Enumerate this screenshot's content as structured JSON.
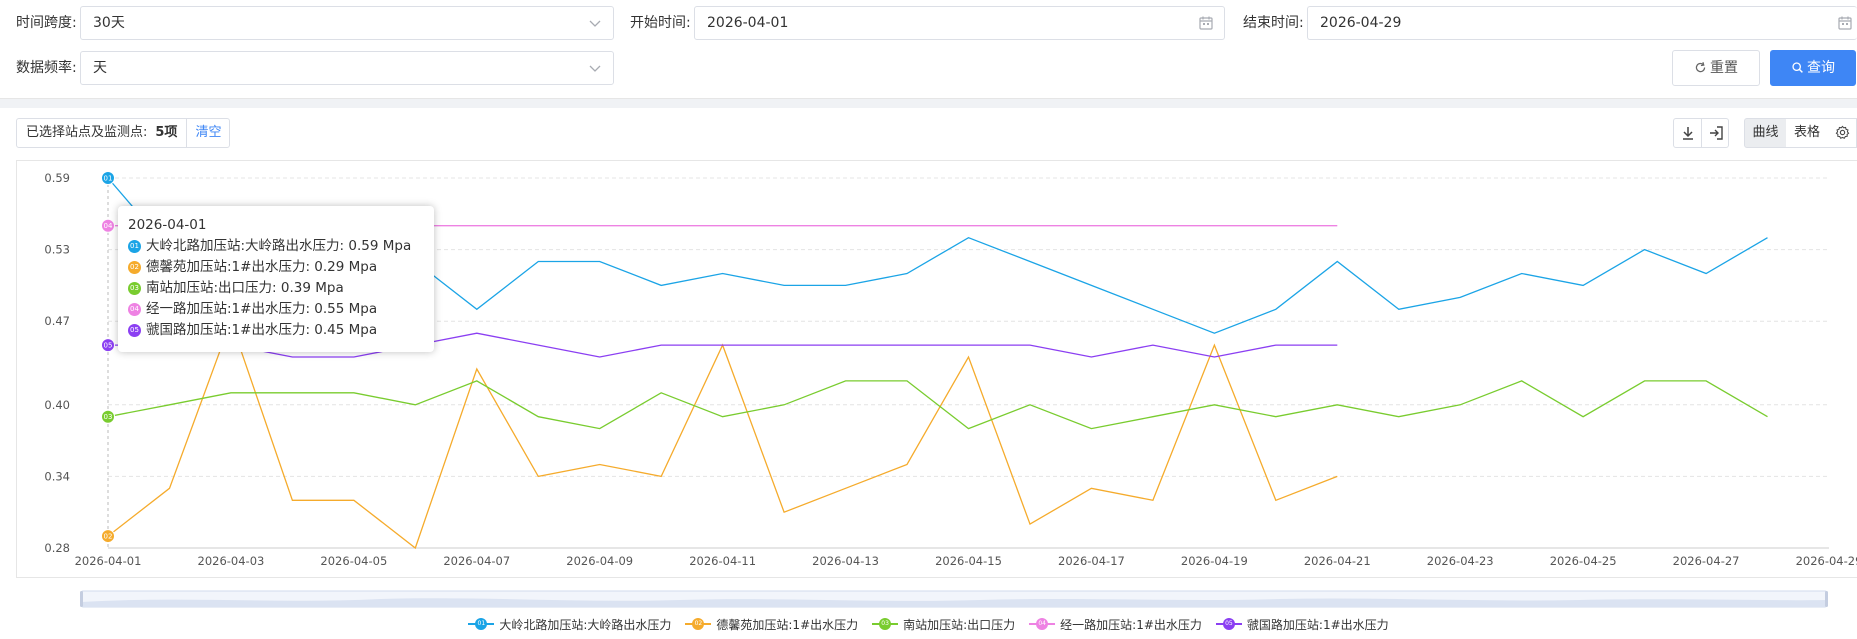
{
  "filters": {
    "span_label": "时间跨度:",
    "span_value": "30天",
    "start_label": "开始时间:",
    "start_value": "2026-04-01",
    "end_label": "结束时间:",
    "end_value": "2026-04-29",
    "freq_label": "数据频率:",
    "freq_value": "天",
    "reset_label": "重置",
    "query_label": "查询"
  },
  "toolbar": {
    "selected_label": "已选择站点及监测点:",
    "selected_count": "5项",
    "clear_label": "清空",
    "curve_label": "曲线",
    "table_label": "表格"
  },
  "tooltip": {
    "date": "2026-04-01",
    "rows": [
      {
        "num": "01",
        "text": "大岭北路加压站:大岭路出水压力:  0.59 Mpa",
        "color": "#1ba4e6"
      },
      {
        "num": "02",
        "text": "德馨苑加压站:1#出水压力:  0.29 Mpa",
        "color": "#f5ab2c"
      },
      {
        "num": "03",
        "text": "南站加压站:出口压力:  0.39 Mpa",
        "color": "#79cc2f"
      },
      {
        "num": "04",
        "text": "经一路加压站:1#出水压力:  0.55 Mpa",
        "color": "#ee82e3"
      },
      {
        "num": "05",
        "text": "虢国路加压站:1#出水压力:  0.45 Mpa",
        "color": "#8b3ff2"
      }
    ]
  },
  "chart_data": {
    "type": "line",
    "x": [
      "2026-04-01",
      "2026-04-02",
      "2026-04-03",
      "2026-04-04",
      "2026-04-05",
      "2026-04-06",
      "2026-04-07",
      "2026-04-08",
      "2026-04-09",
      "2026-04-10",
      "2026-04-11",
      "2026-04-12",
      "2026-04-13",
      "2026-04-14",
      "2026-04-15",
      "2026-04-16",
      "2026-04-17",
      "2026-04-18",
      "2026-04-19",
      "2026-04-20",
      "2026-04-21",
      "2026-04-22",
      "2026-04-23",
      "2026-04-24",
      "2026-04-25",
      "2026-04-26",
      "2026-04-27",
      "2026-04-28",
      "2026-04-29"
    ],
    "xticks": [
      "2026-04-01",
      "2026-04-03",
      "2026-04-05",
      "2026-04-07",
      "2026-04-09",
      "2026-04-11",
      "2026-04-13",
      "2026-04-15",
      "2026-04-17",
      "2026-04-19",
      "2026-04-21",
      "2026-04-23",
      "2026-04-25",
      "2026-04-27",
      "2026-04-29"
    ],
    "yticks": [
      "0.59",
      "0.53",
      "0.47",
      "0.40",
      "0.34",
      "0.28"
    ],
    "ylim": [
      0.28,
      0.59
    ],
    "grid": true,
    "legend_position": "bottom",
    "series": [
      {
        "name": "大岭北路加压站:大岭路出水压力",
        "num": "01",
        "color": "#1ba4e6",
        "values": [
          0.59,
          0.53,
          0.52,
          0.51,
          0.52,
          0.52,
          0.48,
          0.52,
          0.52,
          0.5,
          0.51,
          0.5,
          0.5,
          0.51,
          0.54,
          0.52,
          0.5,
          0.48,
          0.46,
          0.48,
          0.52,
          0.48,
          0.49,
          0.51,
          0.5,
          0.53,
          0.51,
          0.54,
          null
        ]
      },
      {
        "name": "德馨苑加压站:1#出水压力",
        "num": "02",
        "color": "#f5ab2c",
        "values": [
          0.29,
          0.33,
          0.47,
          0.32,
          0.32,
          0.28,
          0.43,
          0.34,
          0.35,
          0.34,
          0.45,
          0.31,
          0.33,
          0.35,
          0.44,
          0.3,
          0.33,
          0.32,
          0.45,
          0.32,
          0.34,
          null,
          null,
          null,
          null,
          null,
          null,
          null,
          null
        ]
      },
      {
        "name": "南站加压站:出口压力",
        "num": "03",
        "color": "#79cc2f",
        "values": [
          0.39,
          0.4,
          0.41,
          0.41,
          0.41,
          0.4,
          0.42,
          0.39,
          0.38,
          0.41,
          0.39,
          0.4,
          0.42,
          0.42,
          0.38,
          0.4,
          0.38,
          0.39,
          0.4,
          0.39,
          0.4,
          0.39,
          0.4,
          0.42,
          0.39,
          0.42,
          0.42,
          0.39,
          null
        ]
      },
      {
        "name": "经一路加压站:1#出水压力",
        "num": "04",
        "color": "#ee82e3",
        "values": [
          0.55,
          0.55,
          0.55,
          0.55,
          0.55,
          0.55,
          0.55,
          0.55,
          0.55,
          0.55,
          0.55,
          0.55,
          0.55,
          0.55,
          0.55,
          0.55,
          0.55,
          0.55,
          0.55,
          0.55,
          0.55,
          null,
          null,
          null,
          null,
          null,
          null,
          null,
          null
        ]
      },
      {
        "name": "虢国路加压站:1#出水压力",
        "num": "05",
        "color": "#8b3ff2",
        "values": [
          0.45,
          0.45,
          0.45,
          0.44,
          0.44,
          0.45,
          0.46,
          0.45,
          0.44,
          0.45,
          0.45,
          0.45,
          0.45,
          0.45,
          0.45,
          0.45,
          0.44,
          0.45,
          0.44,
          0.45,
          0.45,
          null,
          null,
          null,
          null,
          null,
          null,
          null,
          null
        ]
      }
    ]
  }
}
